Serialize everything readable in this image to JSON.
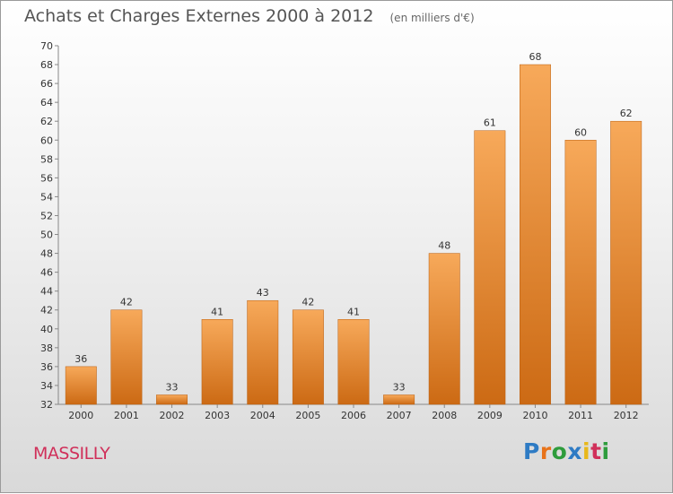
{
  "chart_data": {
    "type": "bar",
    "title": "Achats et Charges Externes 2000 à 2012",
    "subtitle": "(en milliers d'€)",
    "categories": [
      "2000",
      "2001",
      "2002",
      "2003",
      "2004",
      "2005",
      "2006",
      "2007",
      "2008",
      "2009",
      "2010",
      "2011",
      "2012"
    ],
    "values": [
      36,
      42,
      33,
      41,
      43,
      42,
      41,
      33,
      48,
      61,
      68,
      60,
      62
    ],
    "ylim": [
      32,
      70
    ],
    "yticks": [
      32,
      34,
      36,
      38,
      40,
      42,
      44,
      46,
      48,
      50,
      52,
      54,
      56,
      58,
      60,
      62,
      64,
      66,
      68,
      70
    ],
    "grid": false,
    "bar_color_top": "#f7a95a",
    "bar_color_bottom": "#cc6a14"
  },
  "footer": {
    "commune": "MASSILLY",
    "logo": "Proxiti"
  }
}
